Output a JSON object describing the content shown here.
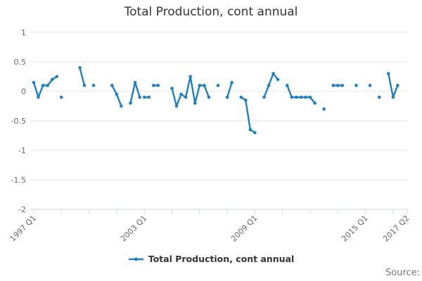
{
  "chart_data": {
    "type": "line",
    "title": "Total Production, cont annual",
    "legend": {
      "label": "Total Production, cont annual",
      "position": "bottom-center"
    },
    "colors": {
      "series": "#1e7fc2",
      "grid": "#e6e6e6",
      "axis_line": "#ccd6eb",
      "axis_label": "#666666",
      "title": "#333333",
      "legend_text": "#333333",
      "source_text": "#777777"
    },
    "y_axis": {
      "min": -2,
      "max": 1,
      "grid": true,
      "ticks": [
        {
          "value": 1,
          "label": "1"
        },
        {
          "value": 0.5,
          "label": "0.5"
        },
        {
          "value": 0,
          "label": "0"
        },
        {
          "value": -0.5,
          "label": "-0.5"
        },
        {
          "value": -1,
          "label": "-1"
        },
        {
          "value": -1.5,
          "label": "-1.5"
        },
        {
          "value": -2,
          "label": "-2"
        }
      ]
    },
    "x_axis": {
      "start": "1997 Q1",
      "end": "2017 Q2",
      "total_quarters": 82,
      "tick_interval_quarters": 6,
      "ticks": [
        {
          "index": 0,
          "label": "1997 Q1"
        },
        {
          "index": 24,
          "label": "2003 Q1"
        },
        {
          "index": 48,
          "label": "2009 Q1"
        },
        {
          "index": 72,
          "label": "2015 Q1"
        },
        {
          "index": 81,
          "label": "2017 Q2"
        }
      ]
    },
    "series": [
      {
        "name": "Total Production, cont annual",
        "segments": [
          {
            "start": "1997 Q1",
            "i": 0,
            "values": [
              0.15,
              -0.1,
              0.1,
              0.1,
              0.2,
              0.25
            ]
          },
          {
            "start": "1998 Q3",
            "i": 6,
            "values": [
              -0.1
            ]
          },
          {
            "start": "1999 Q3",
            "i": 10,
            "values": [
              0.4,
              0.1
            ]
          },
          {
            "start": "2000 Q2",
            "i": 13,
            "values": [
              0.1
            ]
          },
          {
            "start": "2001 Q2",
            "i": 17,
            "values": [
              0.1,
              -0.05,
              -0.25
            ]
          },
          {
            "start": "2002 Q2",
            "i": 21,
            "values": [
              -0.2,
              0.15,
              -0.1
            ]
          },
          {
            "start": "2003 Q1",
            "i": 24,
            "values": [
              -0.1,
              -0.1
            ]
          },
          {
            "start": "2003 Q3",
            "i": 26,
            "values": [
              0.1,
              0.1
            ]
          },
          {
            "start": "2004 Q3",
            "i": 30,
            "values": [
              0.05,
              -0.25,
              -0.05,
              -0.1,
              0.25,
              -0.2,
              0.1,
              0.1,
              -0.1
            ]
          },
          {
            "start": "2007 Q1",
            "i": 40,
            "values": [
              0.1
            ]
          },
          {
            "start": "2007 Q3",
            "i": 42,
            "values": [
              -0.1,
              0.15
            ]
          },
          {
            "start": "2008 Q2",
            "i": 45,
            "values": [
              -0.1,
              -0.15,
              -0.65,
              -0.7
            ]
          },
          {
            "start": "2009 Q3",
            "i": 50,
            "values": [
              -0.1,
              0.1,
              0.3,
              0.2
            ]
          },
          {
            "start": "2010 Q4",
            "i": 55,
            "values": [
              0.1,
              -0.1,
              -0.1,
              -0.1,
              -0.1,
              -0.1,
              -0.2
            ]
          },
          {
            "start": "2012 Q4",
            "i": 63,
            "values": [
              -0.3
            ]
          },
          {
            "start": "2013 Q2",
            "i": 65,
            "values": [
              0.1,
              0.1,
              0.1
            ]
          },
          {
            "start": "2014 Q3",
            "i": 70,
            "values": [
              0.1
            ]
          },
          {
            "start": "2015 Q2",
            "i": 73,
            "values": [
              0.1
            ]
          },
          {
            "start": "2015 Q4",
            "i": 75,
            "values": [
              -0.1
            ]
          },
          {
            "start": "2016 Q2",
            "i": 77,
            "values": [
              0.3,
              -0.1,
              0.1
            ]
          }
        ]
      }
    ]
  },
  "footer": {
    "source_label": "Source:"
  }
}
